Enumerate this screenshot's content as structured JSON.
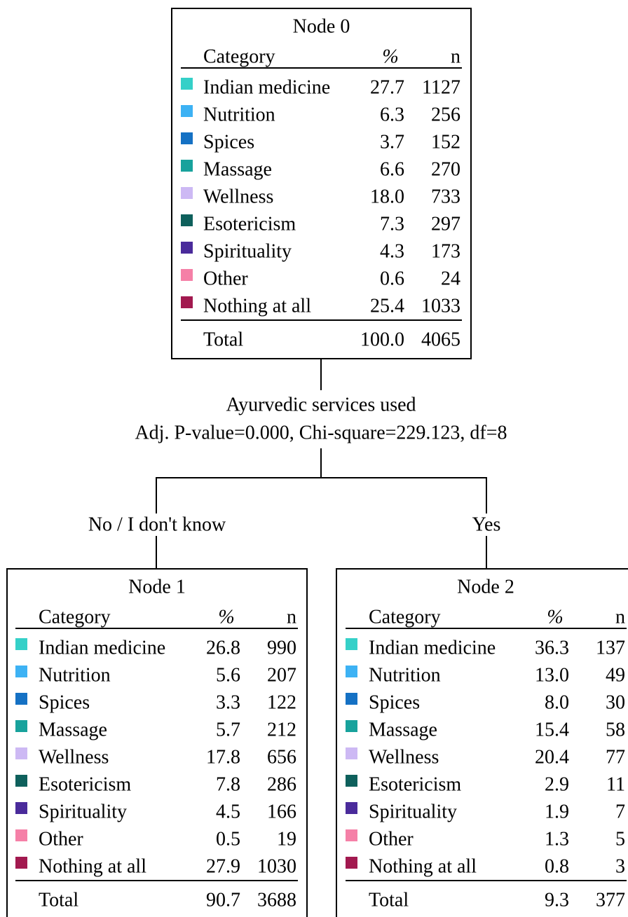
{
  "root": {
    "title": "Node 0",
    "header": [
      "Category",
      "%",
      "n"
    ],
    "rows": [
      [
        "Indian medicine",
        "27.7",
        "1127"
      ],
      [
        "Nutrition",
        "6.3",
        "256"
      ],
      [
        "Spices",
        "3.7",
        "152"
      ],
      [
        "Massage",
        "6.6",
        "270"
      ],
      [
        "Wellness",
        "18.0",
        "733"
      ],
      [
        "Esotericism",
        "7.3",
        "297"
      ],
      [
        "Spirituality",
        "4.3",
        "173"
      ],
      [
        "Other",
        "0.6",
        "24"
      ],
      [
        "Nothing at all",
        "25.4",
        "1033"
      ]
    ],
    "total": [
      "Total",
      "100.0",
      "4065"
    ]
  },
  "split": {
    "variable": "Ayurvedic services used",
    "stats": "Adj. P-value=0.000, Chi-square=229.123, df=8"
  },
  "branches": [
    {
      "label": "No / I don't know",
      "node": {
        "title": "Node 1",
        "header": [
          "Category",
          "%",
          "n"
        ],
        "rows": [
          [
            "Indian medicine",
            "26.8",
            "990"
          ],
          [
            "Nutrition",
            "5.6",
            "207"
          ],
          [
            "Spices",
            "3.3",
            "122"
          ],
          [
            "Massage",
            "5.7",
            "212"
          ],
          [
            "Wellness",
            "17.8",
            "656"
          ],
          [
            "Esotericism",
            "7.8",
            "286"
          ],
          [
            "Spirituality",
            "4.5",
            "166"
          ],
          [
            "Other",
            "0.5",
            "19"
          ],
          [
            "Nothing at all",
            "27.9",
            "1030"
          ]
        ],
        "total": [
          "Total",
          "90.7",
          "3688"
        ]
      }
    },
    {
      "label": "Yes",
      "node": {
        "title": "Node 2",
        "header": [
          "Category",
          "%",
          "n"
        ],
        "rows": [
          [
            "Indian medicine",
            "36.3",
            "137"
          ],
          [
            "Nutrition",
            "13.0",
            "49"
          ],
          [
            "Spices",
            "8.0",
            "30"
          ],
          [
            "Massage",
            "15.4",
            "58"
          ],
          [
            "Wellness",
            "20.4",
            "77"
          ],
          [
            "Esotericism",
            "2.9",
            "11"
          ],
          [
            "Spirituality",
            "1.9",
            "7"
          ],
          [
            "Other",
            "1.3",
            "5"
          ],
          [
            "Nothing at all",
            "0.8",
            "3"
          ]
        ],
        "total": [
          "Total",
          "9.3",
          "377"
        ]
      }
    }
  ]
}
